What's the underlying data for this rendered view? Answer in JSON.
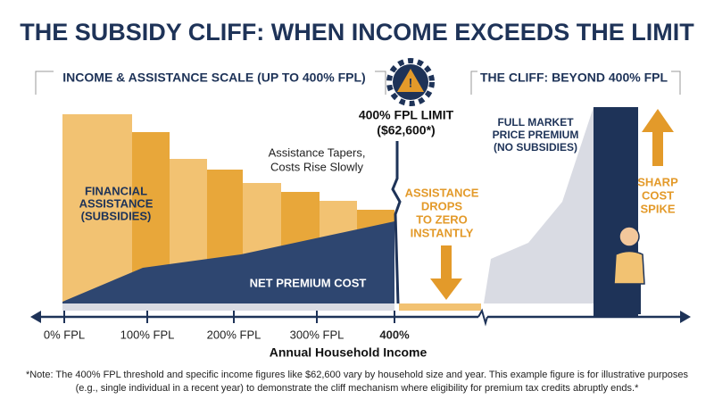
{
  "title": "THE SUBSIDY CLIFF: WHEN INCOME EXCEEDS THE LIMIT",
  "left_header": "INCOME & ASSISTANCE SCALE (UP TO 400% FPL)",
  "right_header": "THE CLIFF: BEYOND 400% FPL",
  "subsidy_label": [
    "FINANCIAL",
    "ASSISTANCE",
    "(SUBSIDIES)"
  ],
  "taper_note": [
    "Assistance Tapers,",
    "Costs Rise Slowly"
  ],
  "net_premium_label": "NET PREMIUM COST",
  "limit_label": [
    "400% FPL LIMIT",
    "($62,600*)"
  ],
  "drop_label": [
    "ASSISTANCE",
    "DROPS",
    "TO ZERO",
    "INSTANTLY"
  ],
  "full_price_label": [
    "FULL MARKET",
    "PRICE PREMIUM",
    "(NO SUBSIDIES)"
  ],
  "spike_label": [
    "SHARP",
    "COST",
    "SPIKE"
  ],
  "axis_ticks": [
    "0% FPL",
    "100% FPL",
    "200% FPL",
    "300% FPL",
    "400%"
  ],
  "axis_title": "Annual Household Income",
  "footnote": [
    "*Note: The 400% FPL threshold and specific income figures like $62,600 vary by household size and year. This example figure is for illustrative purposes",
    "(e.g., single individual in a recent year) to demonstrate the cliff mechanism where eligibility for premium tax credits abruptly ends.*"
  ]
}
